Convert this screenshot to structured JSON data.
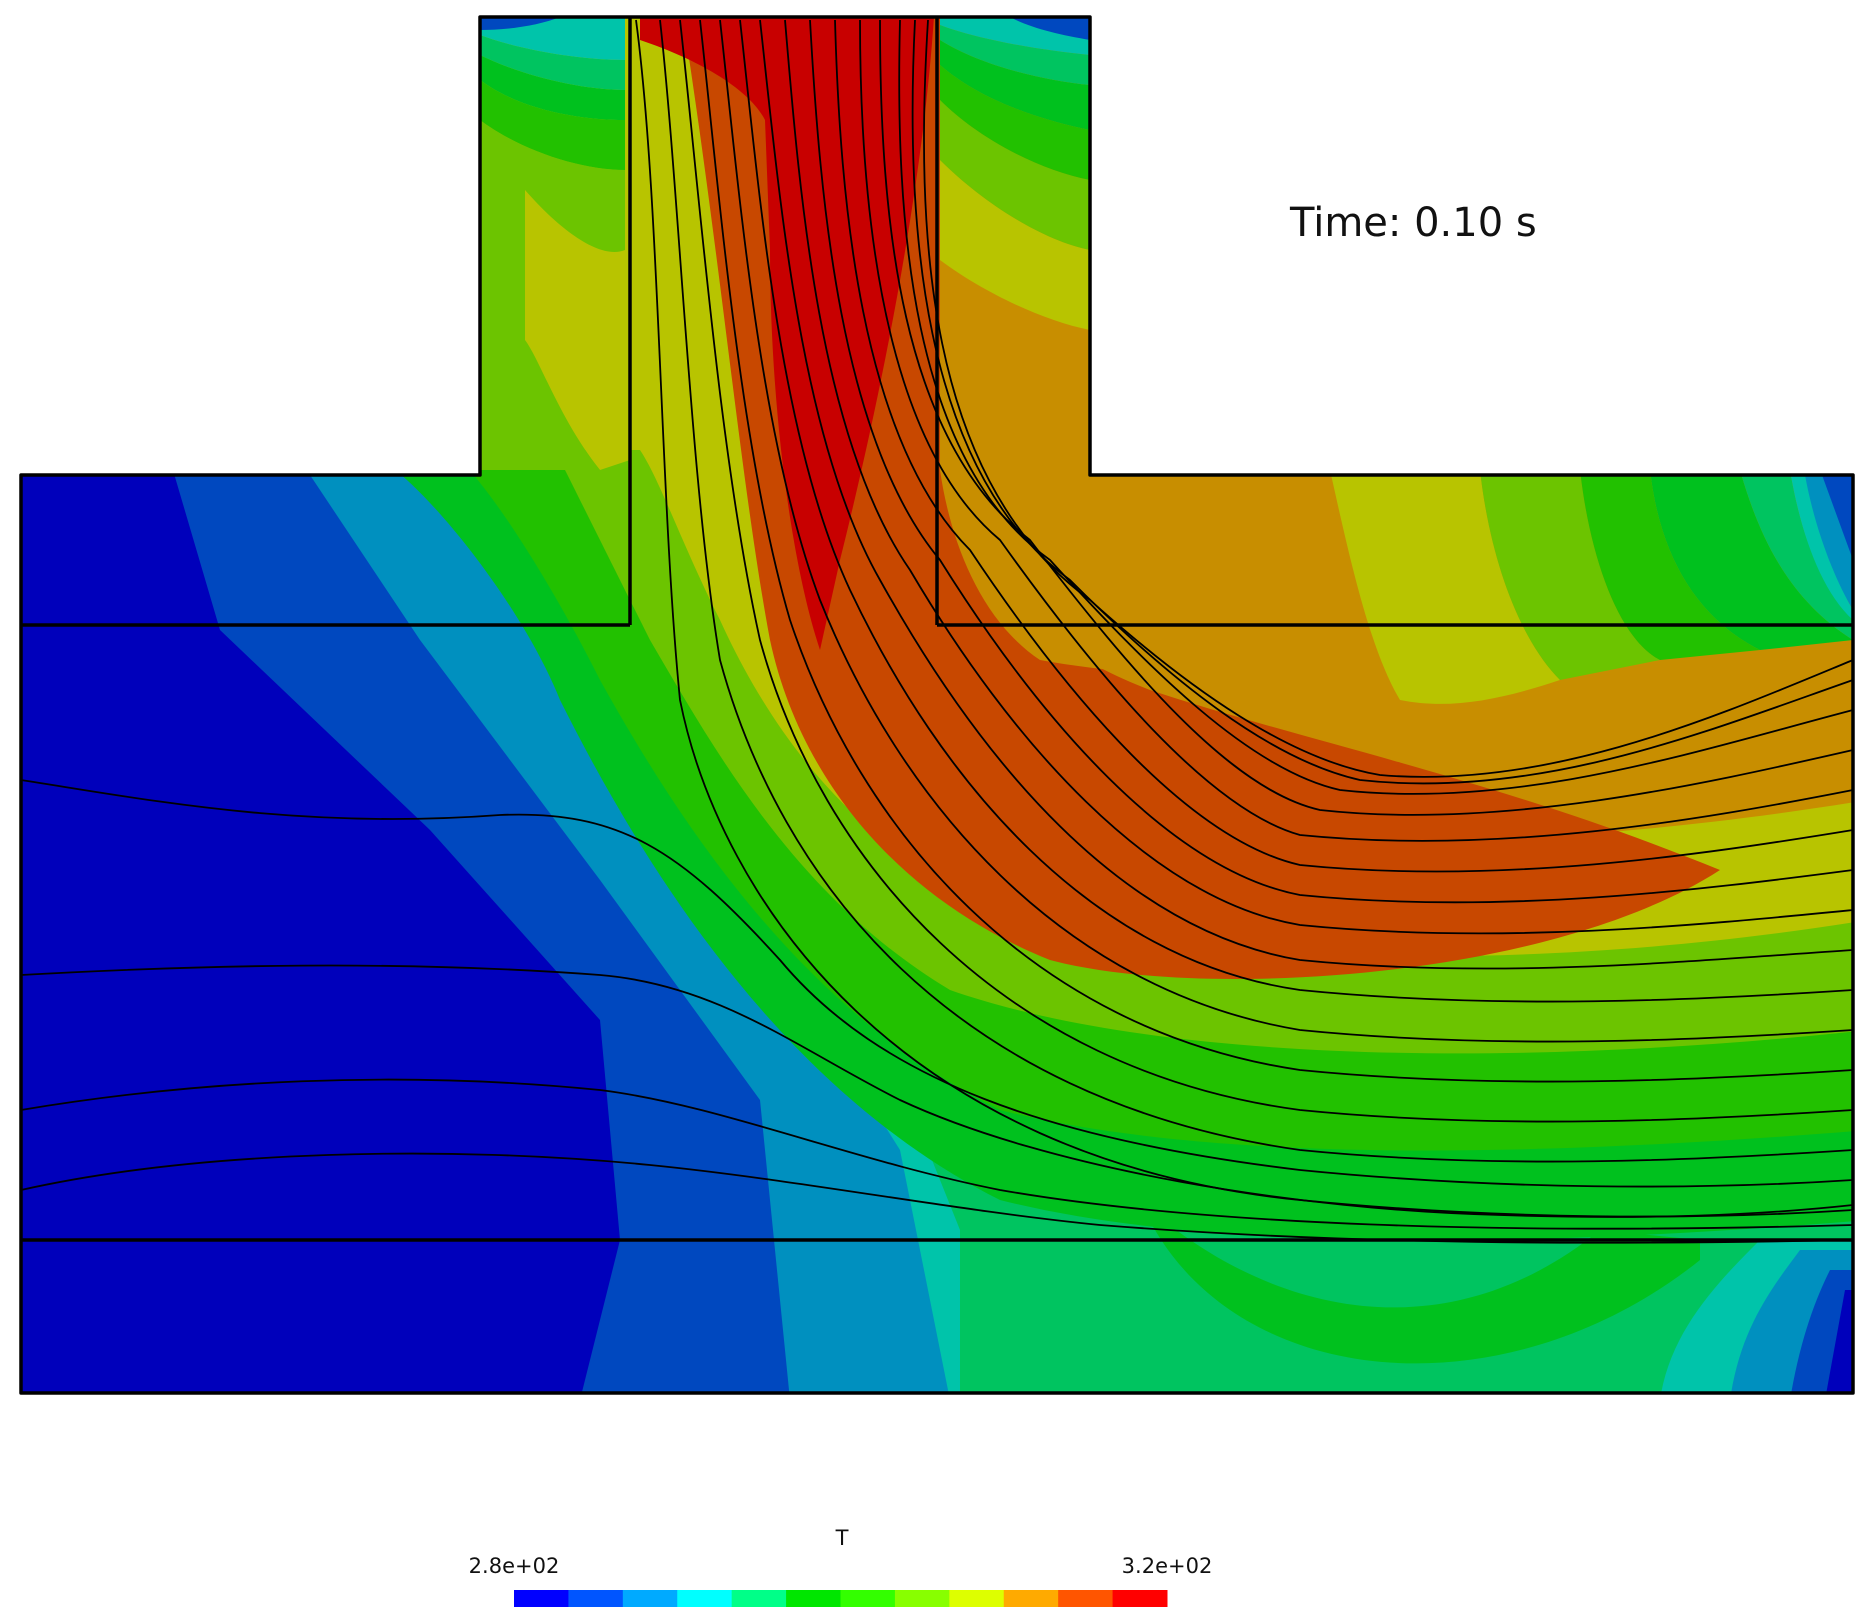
{
  "annotation": {
    "time_label": "Time: 0.10 s"
  },
  "colorbar": {
    "title": "T",
    "min_label": "2.8e+02",
    "max_label": "3.2e+02",
    "min": 280,
    "max": 320,
    "colors": [
      "#0000ff",
      "#0055ff",
      "#00aaff",
      "#00ffff",
      "#00ff88",
      "#00e600",
      "#33ff00",
      "#88ff00",
      "#ddff00",
      "#ffaa00",
      "#ff5500",
      "#ff0000"
    ]
  },
  "palette": {
    "c0": "#0000bb",
    "c1": "#0048bf",
    "c2": "#0090bf",
    "c3": "#00c4aa",
    "c4": "#00c460",
    "c5": "#00c11e",
    "c6": "#22c100",
    "c7": "#6cc400",
    "c8": "#b8c400",
    "c9": "#c88e00",
    "c10": "#c84800",
    "c11": "#c80000",
    "outline": "#000000",
    "streamline": "#000000"
  }
}
